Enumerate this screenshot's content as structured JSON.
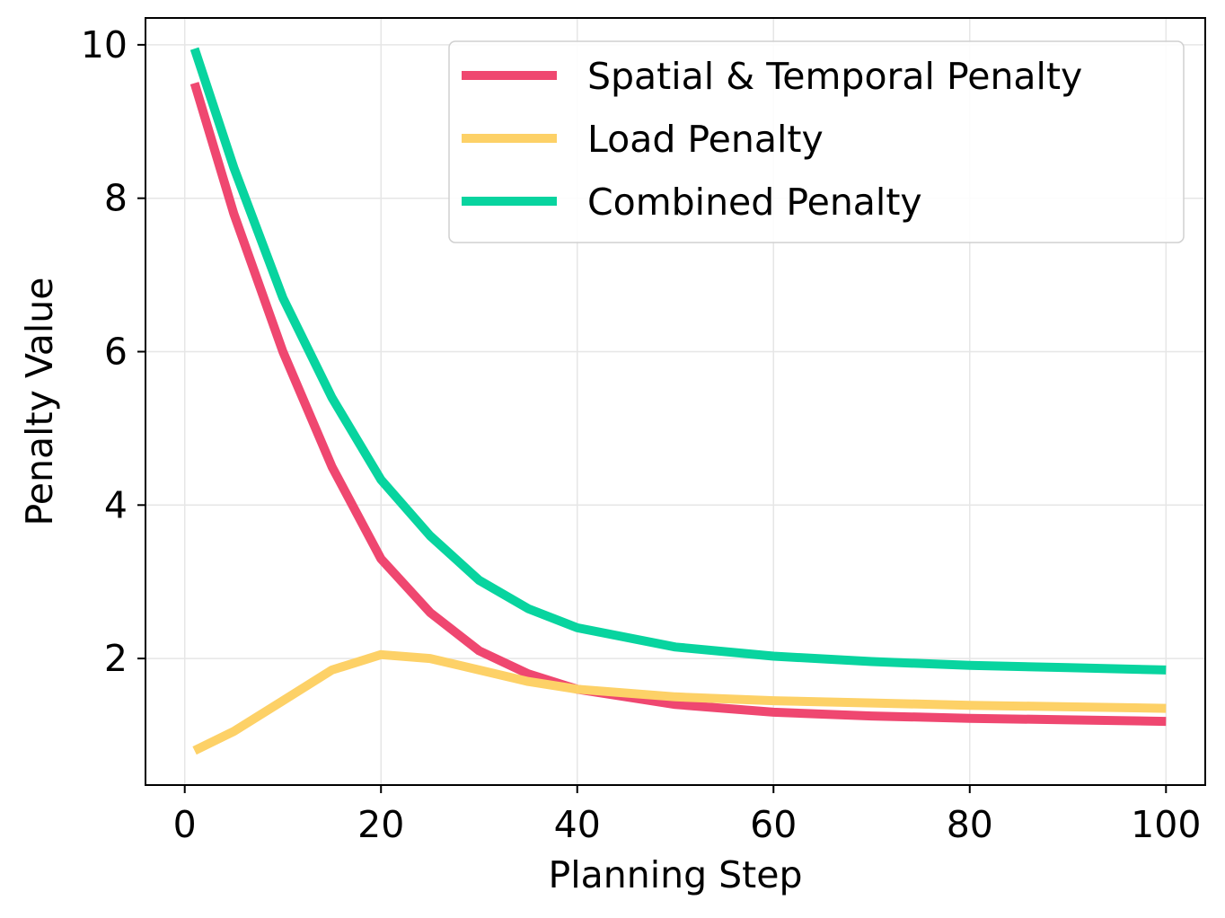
{
  "chart_data": {
    "type": "line",
    "title": "",
    "xlabel": "Planning Step",
    "ylabel": "Penalty Value",
    "xlim": [
      -4,
      104
    ],
    "ylim": [
      0.35,
      10.35
    ],
    "xticks": [
      0,
      20,
      40,
      60,
      80,
      100
    ],
    "yticks": [
      2,
      4,
      6,
      8,
      10
    ],
    "xtick_labels": [
      "0",
      "20",
      "40",
      "60",
      "80",
      "100"
    ],
    "ytick_labels": [
      "2",
      "4",
      "6",
      "8",
      "10"
    ],
    "grid": true,
    "legend_position": "top-right",
    "x": [
      1,
      5,
      10,
      15,
      20,
      25,
      30,
      35,
      40,
      50,
      60,
      70,
      80,
      90,
      100
    ],
    "series": [
      {
        "name": "Spatial & Temporal Penalty",
        "color": "#ef4770",
        "values": [
          9.5,
          7.8,
          6.0,
          4.5,
          3.3,
          2.6,
          2.1,
          1.8,
          1.6,
          1.4,
          1.3,
          1.25,
          1.22,
          1.2,
          1.18
        ]
      },
      {
        "name": "Load Penalty",
        "color": "#fdd167",
        "values": [
          0.8,
          1.05,
          1.45,
          1.85,
          2.05,
          2.0,
          1.85,
          1.7,
          1.6,
          1.5,
          1.45,
          1.42,
          1.39,
          1.37,
          1.35
        ]
      },
      {
        "name": "Combined Penalty",
        "color": "#08d49f",
        "values": [
          9.95,
          8.4,
          6.7,
          5.4,
          4.33,
          3.6,
          3.02,
          2.65,
          2.4,
          2.15,
          2.03,
          1.96,
          1.91,
          1.88,
          1.85
        ]
      }
    ]
  }
}
